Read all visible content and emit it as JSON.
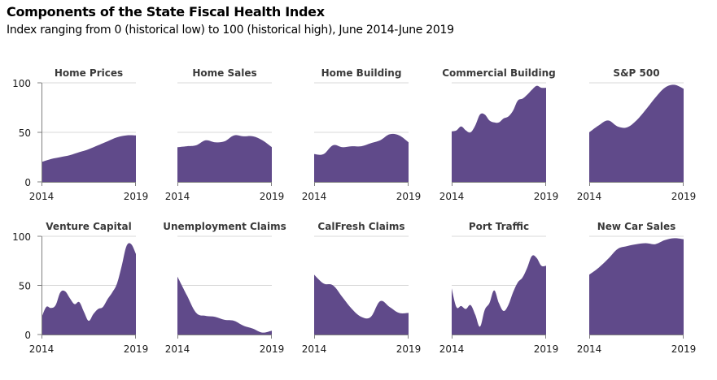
{
  "title": "Components of the State Fiscal Health Index",
  "subtitle": "Index ranging from 0 (historical low) to 100 (historical high), June 2014-June 2019",
  "colors": {
    "fill": "#604A8A",
    "grid": "#D9D9D9",
    "axis": "#808080"
  },
  "chart_data": [
    {
      "type": "area",
      "title": "Home Prices",
      "xlabel": "",
      "ylabel": "",
      "x_ticks": [
        "2014",
        "2019"
      ],
      "y_ticks": [
        0,
        50,
        100
      ],
      "ylim": [
        0,
        100
      ],
      "xlim": [
        2014.5,
        2019.5
      ],
      "grid": true,
      "x": [
        2014.5,
        2015.0,
        2015.5,
        2016.0,
        2016.5,
        2017.0,
        2017.5,
        2018.0,
        2018.5,
        2019.0,
        2019.5
      ],
      "values": [
        20,
        23,
        25,
        27,
        30,
        33,
        37,
        41,
        45,
        47,
        47
      ]
    },
    {
      "type": "area",
      "title": "Home Sales",
      "xlabel": "",
      "ylabel": "",
      "x_ticks": [
        "2014",
        "2019"
      ],
      "y_ticks": [
        0,
        50,
        100
      ],
      "ylim": [
        0,
        100
      ],
      "xlim": [
        2014.5,
        2019.5
      ],
      "grid": true,
      "x": [
        2014.5,
        2015.0,
        2015.5,
        2016.0,
        2016.5,
        2017.0,
        2017.5,
        2018.0,
        2018.5,
        2019.0,
        2019.5
      ],
      "values": [
        35,
        36,
        37,
        42,
        40,
        41,
        47,
        46,
        46,
        42,
        35
      ]
    },
    {
      "type": "area",
      "title": "Home Building",
      "xlabel": "",
      "ylabel": "",
      "x_ticks": [
        "2014",
        "2019"
      ],
      "y_ticks": [
        0,
        50,
        100
      ],
      "ylim": [
        0,
        100
      ],
      "xlim": [
        2014.5,
        2019.5
      ],
      "grid": true,
      "x": [
        2014.5,
        2015.0,
        2015.5,
        2016.0,
        2016.5,
        2017.0,
        2017.5,
        2018.0,
        2018.5,
        2019.0,
        2019.5
      ],
      "values": [
        28,
        28,
        37,
        35,
        36,
        36,
        39,
        42,
        48,
        47,
        40
      ]
    },
    {
      "type": "area",
      "title": "Commercial Building",
      "xlabel": "",
      "ylabel": "",
      "x_ticks": [
        "2014",
        "2019"
      ],
      "y_ticks": [
        0,
        50,
        100
      ],
      "ylim": [
        0,
        100
      ],
      "xlim": [
        2014.5,
        2019.5
      ],
      "grid": true,
      "x": [
        2014.5,
        2014.75,
        2015.0,
        2015.25,
        2015.5,
        2015.75,
        2016.0,
        2016.25,
        2016.5,
        2016.75,
        2017.0,
        2017.25,
        2017.5,
        2017.75,
        2018.0,
        2018.25,
        2018.5,
        2018.75,
        2019.0,
        2019.25,
        2019.5
      ],
      "values": [
        51,
        52,
        56,
        52,
        50,
        57,
        68,
        68,
        62,
        60,
        60,
        64,
        66,
        72,
        82,
        84,
        88,
        93,
        97,
        95,
        95
      ]
    },
    {
      "type": "area",
      "title": "S&P 500",
      "xlabel": "",
      "ylabel": "",
      "x_ticks": [
        "2014",
        "2019"
      ],
      "y_ticks": [
        0,
        50,
        100
      ],
      "ylim": [
        0,
        100
      ],
      "xlim": [
        2014.5,
        2019.5
      ],
      "grid": true,
      "x": [
        2014.5,
        2015.0,
        2015.5,
        2016.0,
        2016.5,
        2017.0,
        2017.5,
        2018.0,
        2018.5,
        2019.0,
        2019.5
      ],
      "values": [
        50,
        57,
        62,
        56,
        55,
        62,
        73,
        85,
        95,
        98,
        94
      ]
    },
    {
      "type": "area",
      "title": "Venture Capital",
      "xlabel": "",
      "ylabel": "",
      "x_ticks": [
        "2014",
        "2019"
      ],
      "y_ticks": [
        0,
        50,
        100
      ],
      "ylim": [
        0,
        100
      ],
      "xlim": [
        2014.5,
        2019.5
      ],
      "grid": true,
      "x": [
        2014.5,
        2014.75,
        2015.0,
        2015.25,
        2015.5,
        2015.75,
        2016.0,
        2016.25,
        2016.5,
        2016.75,
        2017.0,
        2017.25,
        2017.5,
        2017.75,
        2018.0,
        2018.25,
        2018.5,
        2018.75,
        2019.0,
        2019.25,
        2019.5
      ],
      "values": [
        17,
        28,
        27,
        30,
        43,
        44,
        37,
        31,
        33,
        23,
        14,
        21,
        26,
        28,
        36,
        43,
        52,
        70,
        90,
        92,
        82
      ]
    },
    {
      "type": "area",
      "title": "Unemployment Claims",
      "xlabel": "",
      "ylabel": "",
      "x_ticks": [
        "2014",
        "2019"
      ],
      "y_ticks": [
        0,
        50,
        100
      ],
      "ylim": [
        0,
        100
      ],
      "xlim": [
        2014.5,
        2019.5
      ],
      "grid": true,
      "x": [
        2014.5,
        2015.0,
        2015.5,
        2016.0,
        2016.5,
        2017.0,
        2017.5,
        2018.0,
        2018.5,
        2019.0,
        2019.5
      ],
      "values": [
        59,
        40,
        22,
        19,
        18,
        15,
        14,
        9,
        6,
        2,
        4
      ]
    },
    {
      "type": "area",
      "title": "CalFresh Claims",
      "xlabel": "",
      "ylabel": "",
      "x_ticks": [
        "2014",
        "2019"
      ],
      "y_ticks": [
        0,
        50,
        100
      ],
      "ylim": [
        0,
        100
      ],
      "xlim": [
        2014.5,
        2019.5
      ],
      "grid": true,
      "x": [
        2014.5,
        2015.0,
        2015.5,
        2016.0,
        2016.5,
        2017.0,
        2017.5,
        2018.0,
        2018.5,
        2019.0,
        2019.5
      ],
      "values": [
        61,
        52,
        50,
        38,
        26,
        18,
        18,
        34,
        28,
        22,
        22
      ]
    },
    {
      "type": "area",
      "title": "Port Traffic",
      "xlabel": "",
      "ylabel": "",
      "x_ticks": [
        "2014",
        "2019"
      ],
      "y_ticks": [
        0,
        50,
        100
      ],
      "ylim": [
        0,
        100
      ],
      "xlim": [
        2014.5,
        2019.5
      ],
      "grid": true,
      "x": [
        2014.5,
        2014.75,
        2015.0,
        2015.25,
        2015.5,
        2015.75,
        2016.0,
        2016.25,
        2016.5,
        2016.75,
        2017.0,
        2017.25,
        2017.5,
        2017.75,
        2018.0,
        2018.25,
        2018.5,
        2018.75,
        2019.0,
        2019.25,
        2019.5
      ],
      "values": [
        47,
        28,
        29,
        26,
        30,
        20,
        8,
        25,
        32,
        45,
        32,
        24,
        30,
        43,
        53,
        58,
        68,
        80,
        78,
        70,
        70
      ]
    },
    {
      "type": "area",
      "title": "New Car Sales",
      "xlabel": "",
      "ylabel": "",
      "x_ticks": [
        "2014",
        "2019"
      ],
      "y_ticks": [
        0,
        50,
        100
      ],
      "ylim": [
        0,
        100
      ],
      "xlim": [
        2014.5,
        2019.5
      ],
      "grid": true,
      "x": [
        2014.5,
        2015.0,
        2015.5,
        2016.0,
        2016.5,
        2017.0,
        2017.5,
        2018.0,
        2018.5,
        2019.0,
        2019.5
      ],
      "values": [
        61,
        68,
        77,
        87,
        90,
        92,
        93,
        92,
        96,
        98,
        97
      ]
    }
  ]
}
